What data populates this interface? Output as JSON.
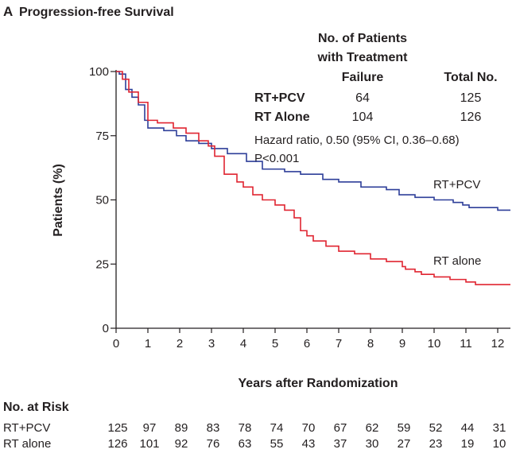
{
  "chart_data": {
    "type": "line",
    "panel_label": "A",
    "title": "Progression-free Survival",
    "xlabel": "Years after Randomization",
    "ylabel": "Patients (%)",
    "xlim": [
      0,
      12.4
    ],
    "ylim": [
      0,
      100
    ],
    "xticks": [
      0,
      1,
      2,
      3,
      4,
      5,
      6,
      7,
      8,
      9,
      10,
      11,
      12
    ],
    "yticks": [
      0,
      25,
      50,
      75,
      100
    ],
    "grid": false,
    "series": [
      {
        "name": "RT+PCV",
        "color": "#2e3f99",
        "x": [
          0,
          0.1,
          0.3,
          0.5,
          0.7,
          0.9,
          1.0,
          1.5,
          1.9,
          2.2,
          2.6,
          3.0,
          3.5,
          4.1,
          4.6,
          5.3,
          5.8,
          6.5,
          7.0,
          7.7,
          8.5,
          8.9,
          9.4,
          10.0,
          10.6,
          10.9,
          11.1,
          12.0,
          12.4
        ],
        "y": [
          100,
          99,
          93,
          90,
          87,
          81,
          78,
          77,
          75,
          73,
          72,
          70,
          68,
          65,
          62,
          61,
          60,
          58,
          57,
          55,
          54,
          52,
          51,
          50,
          49,
          48,
          47,
          46,
          46
        ]
      },
      {
        "name": "RT alone",
        "color": "#e02531",
        "x": [
          0,
          0.2,
          0.4,
          0.7,
          1.0,
          1.3,
          1.8,
          2.2,
          2.6,
          2.9,
          3.1,
          3.4,
          3.8,
          4.0,
          4.3,
          4.6,
          5.0,
          5.3,
          5.6,
          5.8,
          6.0,
          6.2,
          6.6,
          7.0,
          7.5,
          8.0,
          8.5,
          9.0,
          9.1,
          9.4,
          9.6,
          10.0,
          10.5,
          11.0,
          11.3,
          12.4
        ],
        "y": [
          100,
          97,
          92,
          88,
          81,
          80,
          78,
          76,
          73,
          71,
          67,
          60,
          57,
          55,
          52,
          50,
          48,
          46,
          43,
          38,
          36,
          34,
          32,
          30,
          29,
          27,
          26,
          24,
          23,
          22,
          21,
          20,
          19,
          18,
          17,
          17
        ]
      }
    ],
    "legend_table": {
      "header_failure": [
        "No. of Patients",
        "with Treatment",
        "Failure"
      ],
      "header_total": "Total No.",
      "rows": [
        {
          "label": "RT+PCV",
          "failure": "64",
          "total": "125"
        },
        {
          "label": "RT Alone",
          "failure": "104",
          "total": "126"
        }
      ]
    },
    "annotations": [
      "Hazard ratio, 0.50 (95% CI, 0.36–0.68)",
      "P<0.001"
    ],
    "number_at_risk": {
      "title": "No. at Risk",
      "rows": [
        {
          "label": "RT+PCV",
          "values": [
            "125",
            "97",
            "89",
            "83",
            "78",
            "74",
            "70",
            "67",
            "62",
            "59",
            "52",
            "44",
            "31"
          ]
        },
        {
          "label": "RT alone",
          "values": [
            "126",
            "101",
            "92",
            "76",
            "63",
            "55",
            "43",
            "37",
            "30",
            "27",
            "23",
            "19",
            "10"
          ]
        }
      ]
    }
  }
}
